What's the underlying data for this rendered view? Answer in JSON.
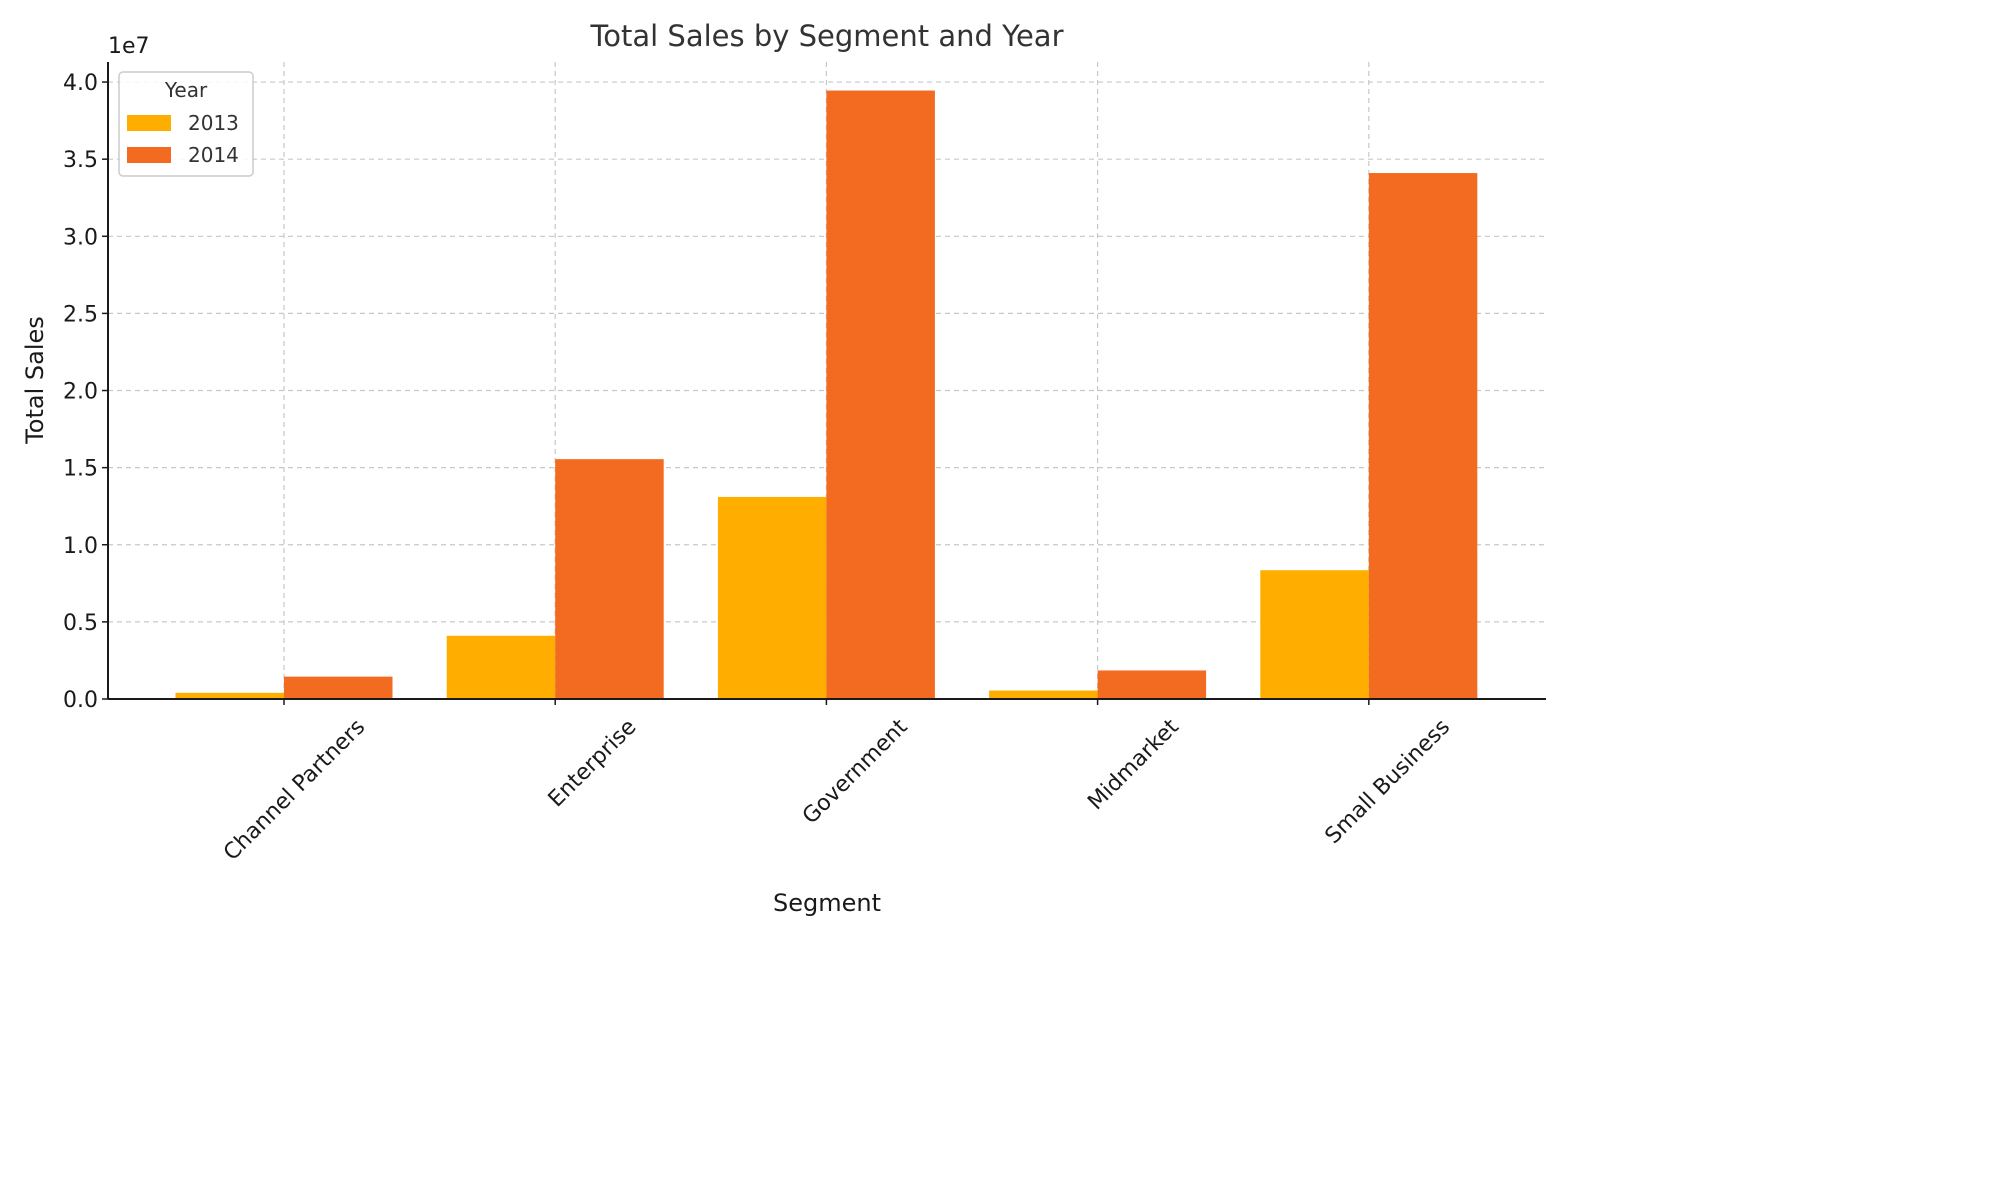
{
  "chart_data": {
    "type": "bar",
    "title": "Total Sales by Segment and Year",
    "xlabel": "Segment",
    "ylabel": "Total Sales",
    "y_offset_label": "1e7",
    "y_scale_factor": 10000000,
    "ylim": [
      0,
      4.13
    ],
    "yticks": [
      0.0,
      0.5,
      1.0,
      1.5,
      2.0,
      2.5,
      3.0,
      3.5,
      4.0
    ],
    "ytick_labels": [
      "0.0",
      "0.5",
      "1.0",
      "1.5",
      "2.0",
      "2.5",
      "3.0",
      "3.5",
      "4.0"
    ],
    "categories": [
      "Channel Partners",
      "Enterprise",
      "Government",
      "Midmarket",
      "Small Business"
    ],
    "series": [
      {
        "name": "2013",
        "color": "#FFAE00",
        "values": [
          0.04,
          0.41,
          1.31,
          0.055,
          0.835
        ]
      },
      {
        "name": "2014",
        "color": "#F26B21",
        "values": [
          0.145,
          1.555,
          3.945,
          0.185,
          3.41
        ]
      }
    ],
    "legend": {
      "title": "Year",
      "position": "top-left"
    },
    "grid": true
  }
}
